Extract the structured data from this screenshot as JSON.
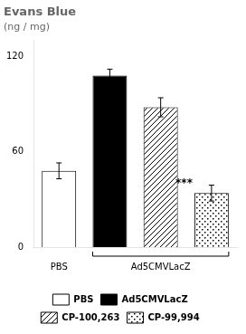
{
  "chart_data": {
    "type": "bar",
    "title": "Evans Blue",
    "y_label": "(ng / mg)",
    "categories": [
      "PBS",
      null,
      "Ad5CMVLacZ",
      null
    ],
    "series": [
      {
        "name": "PBS",
        "color": "white",
        "values": [
          48,
          null,
          null,
          null
        ],
        "errors": [
          5,
          null,
          null,
          null
        ]
      },
      {
        "name": "Ad5CMVLacZ",
        "color": "black",
        "values": [
          null,
          108,
          null,
          null
        ],
        "errors": [
          null,
          4,
          null,
          null
        ]
      },
      {
        "name": "CP-100,263",
        "color": "white",
        "values": [
          null,
          null,
          88,
          null
        ],
        "errors": [
          null,
          null,
          6,
          null
        ]
      },
      {
        "name": "CP-99,994",
        "color": "white",
        "values": [
          null,
          null,
          null,
          34
        ],
        "errors": [
          null,
          null,
          null,
          5
        ]
      }
    ],
    "annotations": [
      {
        "text": "***",
        "series": "CP-99,994"
      }
    ],
    "ylim": [
      0,
      130
    ],
    "yticks": [
      0,
      60,
      120
    ],
    "grid": false,
    "legend": "bottom"
  }
}
